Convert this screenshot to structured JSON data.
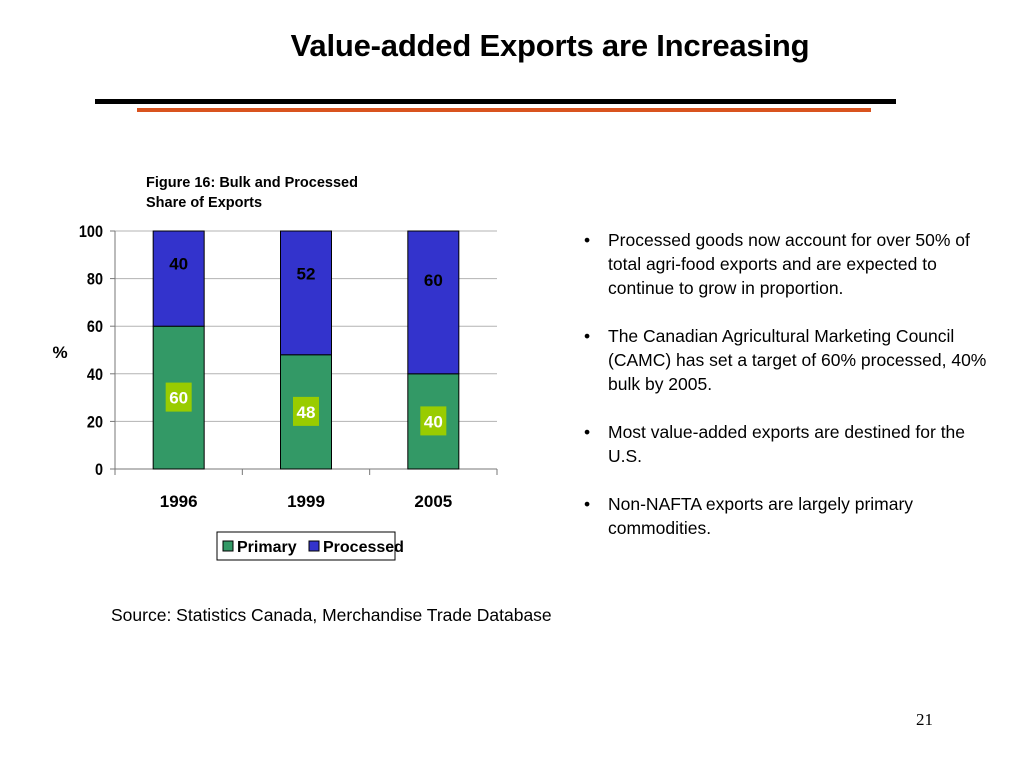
{
  "slide": {
    "title": "Value-added Exports are Increasing",
    "figure_caption_line1": "Figure 16: Bulk and Processed",
    "figure_caption_line2": "Share of Exports",
    "bullets": [
      "Processed goods now account for over 50% of total agri-food exports and are expected to continue to grow in proportion.",
      "The Canadian Agricultural Marketing Council (CAMC) has set a target of  60% processed, 40% bulk by 2005.",
      "Most value-added exports are destined for the U.S.",
      "Non-NAFTA  exports are largely primary commodities."
    ],
    "source": "Source: Statistics Canada, Merchandise Trade Database",
    "page_number": "21"
  },
  "chart_data": {
    "type": "bar",
    "stacked": true,
    "categories": [
      "1996",
      "1999",
      "2005"
    ],
    "series": [
      {
        "name": "Primary",
        "values": [
          60,
          48,
          40
        ],
        "color": "#339966"
      },
      {
        "name": "Processed",
        "values": [
          40,
          52,
          60
        ],
        "color": "#3333cc"
      }
    ],
    "ylabel": "%",
    "ylim": [
      0,
      100
    ],
    "yticks": [
      0,
      20,
      40,
      60,
      80,
      100
    ],
    "grid": true,
    "legend_position": "bottom",
    "label_box_color": "#99cc00"
  }
}
